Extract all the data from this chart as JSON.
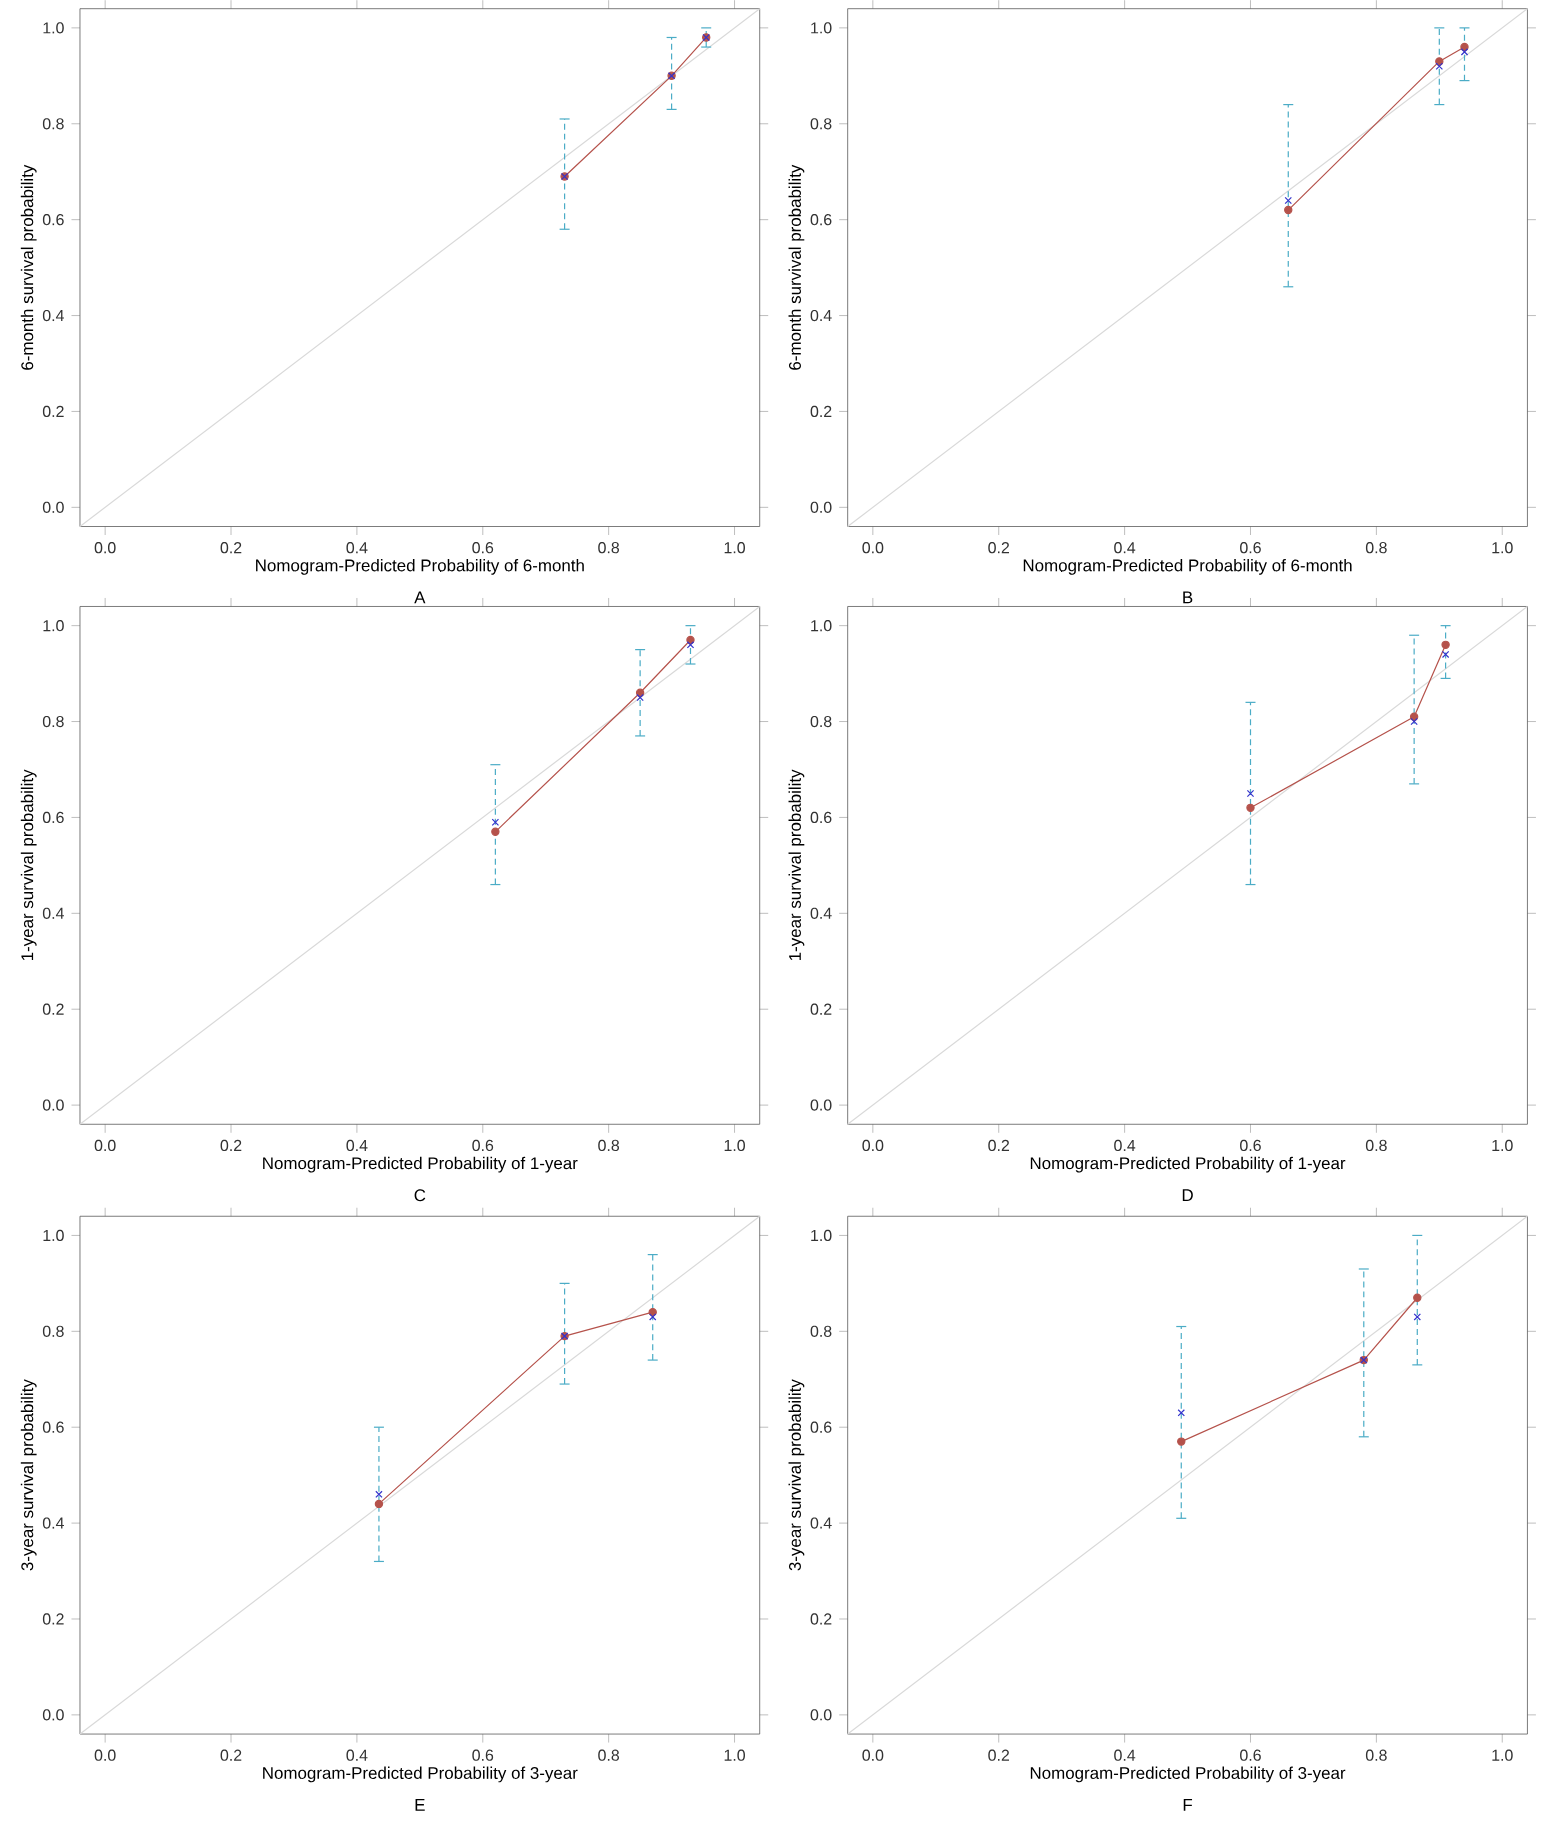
{
  "chart_data": [
    {
      "type": "line",
      "xlabel": "Nomogram-Predicted Probability of 6-month",
      "ylabel": "6-month survival probability",
      "annotations": [
        "A"
      ],
      "xlim": [
        -0.04,
        1.04
      ],
      "ylim": [
        -0.04,
        1.04
      ],
      "xticks": [
        {
          "value": 0,
          "label": "0.0"
        },
        {
          "value": 0.2,
          "label": "0.2"
        },
        {
          "value": 0.4,
          "label": "0.4"
        },
        {
          "value": 0.6,
          "label": "0.6"
        },
        {
          "value": 0.8,
          "label": "0.8"
        },
        {
          "value": 1,
          "label": "1.0"
        }
      ],
      "yticks": [
        {
          "value": 0,
          "label": "0.0"
        },
        {
          "value": 0.2,
          "label": "0.2"
        },
        {
          "value": 0.4,
          "label": "0.4"
        },
        {
          "value": 0.6,
          "label": "0.6"
        },
        {
          "value": 0.8,
          "label": "0.8"
        },
        {
          "value": 1,
          "label": "1.0"
        }
      ],
      "series": [
        {
          "marker": "none",
          "color": "#d9d9d9",
          "x": [
            -0.04,
            1.04
          ],
          "values": [
            -0.04,
            1.04
          ]
        },
        {
          "marker": "circle",
          "color": "#b5524b",
          "x": [
            0.73,
            0.9,
            0.955
          ],
          "values": [
            0.69,
            0.9,
            0.98
          ],
          "errors": [
            [
              0.58,
              0.81
            ],
            [
              0.83,
              0.98
            ],
            [
              0.96,
              1.0
            ]
          ]
        },
        {
          "type": "scatter",
          "marker": "cross",
          "color": "#3333cc",
          "x": [
            0.73,
            0.9,
            0.955
          ],
          "values": [
            0.69,
            0.9,
            0.98
          ]
        }
      ]
    },
    {
      "type": "line",
      "xlabel": "Nomogram-Predicted Probability of 6-month",
      "ylabel": "6-month survival probability",
      "annotations": [
        "B"
      ],
      "xlim": [
        -0.04,
        1.04
      ],
      "ylim": [
        -0.04,
        1.04
      ],
      "xticks": [
        {
          "value": 0,
          "label": "0.0"
        },
        {
          "value": 0.2,
          "label": "0.2"
        },
        {
          "value": 0.4,
          "label": "0.4"
        },
        {
          "value": 0.6,
          "label": "0.6"
        },
        {
          "value": 0.8,
          "label": "0.8"
        },
        {
          "value": 1,
          "label": "1.0"
        }
      ],
      "yticks": [
        {
          "value": 0,
          "label": "0.0"
        },
        {
          "value": 0.2,
          "label": "0.2"
        },
        {
          "value": 0.4,
          "label": "0.4"
        },
        {
          "value": 0.6,
          "label": "0.6"
        },
        {
          "value": 0.8,
          "label": "0.8"
        },
        {
          "value": 1,
          "label": "1.0"
        }
      ],
      "series": [
        {
          "marker": "none",
          "color": "#d9d9d9",
          "x": [
            -0.04,
            1.04
          ],
          "values": [
            -0.04,
            1.04
          ]
        },
        {
          "marker": "circle",
          "color": "#b5524b",
          "x": [
            0.66,
            0.9,
            0.94
          ],
          "values": [
            0.62,
            0.93,
            0.96
          ],
          "errors": [
            [
              0.46,
              0.84
            ],
            [
              0.84,
              1.0
            ],
            [
              0.89,
              1.0
            ]
          ]
        },
        {
          "type": "scatter",
          "marker": "cross",
          "color": "#3333cc",
          "x": [
            0.66,
            0.9,
            0.94
          ],
          "values": [
            0.64,
            0.92,
            0.95
          ]
        }
      ]
    },
    {
      "type": "line",
      "xlabel": "Nomogram-Predicted Probability of 1-year",
      "ylabel": "1-year survival probability",
      "annotations": [
        "C"
      ],
      "xlim": [
        -0.04,
        1.04
      ],
      "ylim": [
        -0.04,
        1.04
      ],
      "xticks": [
        {
          "value": 0,
          "label": "0.0"
        },
        {
          "value": 0.2,
          "label": "0.2"
        },
        {
          "value": 0.4,
          "label": "0.4"
        },
        {
          "value": 0.6,
          "label": "0.6"
        },
        {
          "value": 0.8,
          "label": "0.8"
        },
        {
          "value": 1,
          "label": "1.0"
        }
      ],
      "yticks": [
        {
          "value": 0,
          "label": "0.0"
        },
        {
          "value": 0.2,
          "label": "0.2"
        },
        {
          "value": 0.4,
          "label": "0.4"
        },
        {
          "value": 0.6,
          "label": "0.6"
        },
        {
          "value": 0.8,
          "label": "0.8"
        },
        {
          "value": 1,
          "label": "1.0"
        }
      ],
      "series": [
        {
          "marker": "none",
          "color": "#d9d9d9",
          "x": [
            -0.04,
            1.04
          ],
          "values": [
            -0.04,
            1.04
          ]
        },
        {
          "marker": "circle",
          "color": "#b5524b",
          "x": [
            0.62,
            0.85,
            0.93
          ],
          "values": [
            0.57,
            0.86,
            0.97
          ],
          "errors": [
            [
              0.46,
              0.71
            ],
            [
              0.77,
              0.95
            ],
            [
              0.92,
              1.0
            ]
          ]
        },
        {
          "type": "scatter",
          "marker": "cross",
          "color": "#3333cc",
          "x": [
            0.62,
            0.85,
            0.93
          ],
          "values": [
            0.59,
            0.85,
            0.96
          ]
        }
      ]
    },
    {
      "type": "line",
      "xlabel": "Nomogram-Predicted Probability of 1-year",
      "ylabel": "1-year survival probability",
      "annotations": [
        "D"
      ],
      "xlim": [
        -0.04,
        1.04
      ],
      "ylim": [
        -0.04,
        1.04
      ],
      "xticks": [
        {
          "value": 0,
          "label": "0.0"
        },
        {
          "value": 0.2,
          "label": "0.2"
        },
        {
          "value": 0.4,
          "label": "0.4"
        },
        {
          "value": 0.6,
          "label": "0.6"
        },
        {
          "value": 0.8,
          "label": "0.8"
        },
        {
          "value": 1,
          "label": "1.0"
        }
      ],
      "yticks": [
        {
          "value": 0,
          "label": "0.0"
        },
        {
          "value": 0.2,
          "label": "0.2"
        },
        {
          "value": 0.4,
          "label": "0.4"
        },
        {
          "value": 0.6,
          "label": "0.6"
        },
        {
          "value": 0.8,
          "label": "0.8"
        },
        {
          "value": 1,
          "label": "1.0"
        }
      ],
      "series": [
        {
          "marker": "none",
          "color": "#d9d9d9",
          "x": [
            -0.04,
            1.04
          ],
          "values": [
            -0.04,
            1.04
          ]
        },
        {
          "marker": "circle",
          "color": "#b5524b",
          "x": [
            0.6,
            0.86,
            0.91
          ],
          "values": [
            0.62,
            0.81,
            0.96
          ],
          "errors": [
            [
              0.46,
              0.84
            ],
            [
              0.67,
              0.98
            ],
            [
              0.89,
              1.0
            ]
          ]
        },
        {
          "type": "scatter",
          "marker": "cross",
          "color": "#3333cc",
          "x": [
            0.6,
            0.86,
            0.91
          ],
          "values": [
            0.65,
            0.8,
            0.94
          ]
        }
      ]
    },
    {
      "type": "line",
      "xlabel": "Nomogram-Predicted Probability of 3-year",
      "ylabel": "3-year survival probability",
      "annotations": [
        "E"
      ],
      "xlim": [
        -0.04,
        1.04
      ],
      "ylim": [
        -0.04,
        1.04
      ],
      "xticks": [
        {
          "value": 0,
          "label": "0.0"
        },
        {
          "value": 0.2,
          "label": "0.2"
        },
        {
          "value": 0.4,
          "label": "0.4"
        },
        {
          "value": 0.6,
          "label": "0.6"
        },
        {
          "value": 0.8,
          "label": "0.8"
        },
        {
          "value": 1,
          "label": "1.0"
        }
      ],
      "yticks": [
        {
          "value": 0,
          "label": "0.0"
        },
        {
          "value": 0.2,
          "label": "0.2"
        },
        {
          "value": 0.4,
          "label": "0.4"
        },
        {
          "value": 0.6,
          "label": "0.6"
        },
        {
          "value": 0.8,
          "label": "0.8"
        },
        {
          "value": 1,
          "label": "1.0"
        }
      ],
      "series": [
        {
          "marker": "none",
          "color": "#d9d9d9",
          "x": [
            -0.04,
            1.04
          ],
          "values": [
            -0.04,
            1.04
          ]
        },
        {
          "marker": "circle",
          "color": "#b5524b",
          "x": [
            0.435,
            0.73,
            0.87
          ],
          "values": [
            0.44,
            0.79,
            0.84
          ],
          "errors": [
            [
              0.32,
              0.6
            ],
            [
              0.69,
              0.9
            ],
            [
              0.74,
              0.96
            ]
          ]
        },
        {
          "type": "scatter",
          "marker": "cross",
          "color": "#3333cc",
          "x": [
            0.435,
            0.73,
            0.87
          ],
          "values": [
            0.46,
            0.79,
            0.83
          ]
        }
      ]
    },
    {
      "type": "line",
      "xlabel": "Nomogram-Predicted Probability of 3-year",
      "ylabel": "3-year survival probability",
      "annotations": [
        "F"
      ],
      "xlim": [
        -0.04,
        1.04
      ],
      "ylim": [
        -0.04,
        1.04
      ],
      "xticks": [
        {
          "value": 0,
          "label": "0.0"
        },
        {
          "value": 0.2,
          "label": "0.2"
        },
        {
          "value": 0.4,
          "label": "0.4"
        },
        {
          "value": 0.6,
          "label": "0.6"
        },
        {
          "value": 0.8,
          "label": "0.8"
        },
        {
          "value": 1,
          "label": "1.0"
        }
      ],
      "yticks": [
        {
          "value": 0,
          "label": "0.0"
        },
        {
          "value": 0.2,
          "label": "0.2"
        },
        {
          "value": 0.4,
          "label": "0.4"
        },
        {
          "value": 0.6,
          "label": "0.6"
        },
        {
          "value": 0.8,
          "label": "0.8"
        },
        {
          "value": 1,
          "label": "1.0"
        }
      ],
      "series": [
        {
          "marker": "none",
          "color": "#d9d9d9",
          "x": [
            -0.04,
            1.04
          ],
          "values": [
            -0.04,
            1.04
          ]
        },
        {
          "marker": "circle",
          "color": "#b5524b",
          "x": [
            0.49,
            0.78,
            0.865
          ],
          "values": [
            0.57,
            0.74,
            0.87
          ],
          "errors": [
            [
              0.41,
              0.81
            ],
            [
              0.58,
              0.93
            ],
            [
              0.73,
              1.0
            ]
          ]
        },
        {
          "type": "scatter",
          "marker": "cross",
          "color": "#3333cc",
          "x": [
            0.49,
            0.78,
            0.865
          ],
          "values": [
            0.63,
            0.74,
            0.83
          ]
        }
      ]
    }
  ]
}
